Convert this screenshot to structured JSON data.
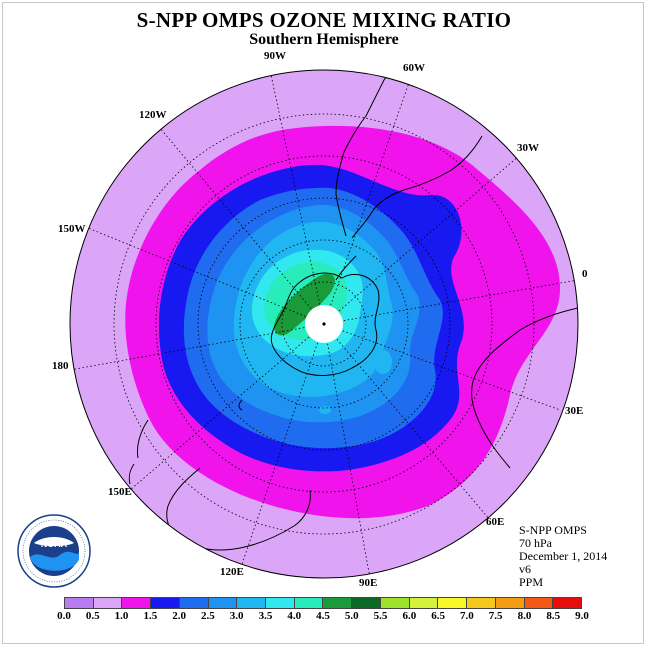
{
  "title": "S-NPP OMPS OZONE MIXING RATIO",
  "subtitle": "Southern Hemisphere",
  "longitude_labels": [
    "90W",
    "60W",
    "30W",
    "0",
    "120W",
    "150W",
    "180",
    "30E",
    "150E",
    "60E",
    "120E",
    "90E"
  ],
  "info": {
    "instrument": "S-NPP OMPS",
    "level": "70 hPa",
    "date": "December 1, 2014",
    "version": "v6",
    "units": "PPM"
  },
  "logo_text": "NOAA",
  "colorbar": {
    "ticks": [
      "0.0",
      "0.5",
      "1.0",
      "1.5",
      "2.0",
      "2.5",
      "3.0",
      "3.5",
      "4.0",
      "4.5",
      "5.0",
      "5.5",
      "6.0",
      "6.5",
      "7.0",
      "7.5",
      "8.0",
      "8.5",
      "9.0"
    ],
    "colors": [
      "#b87cf0",
      "#dca6f8",
      "#f013ec",
      "#1818f0",
      "#1f6cf0",
      "#1f93f2",
      "#1fb6f2",
      "#31e8f0",
      "#28ecbc",
      "#1a9a38",
      "#0c6a26",
      "#9ee22c",
      "#d4f23c",
      "#f8f828",
      "#f4c81c",
      "#f49c14",
      "#f45814",
      "#e80c0c",
      "#8b5a3c"
    ]
  },
  "map_colors": {
    "outer": "#dca6f8",
    "ring_magenta": "#f013ec",
    "ring_blue": "#1818f0",
    "ring_mid": "#1f6cf0",
    "ring_light": "#1f93f2",
    "ring_sky": "#1fb6f2",
    "ring_cyan": "#31e8f0",
    "ring_teal": "#28ecbc",
    "ring_green": "#1a9a38"
  }
}
